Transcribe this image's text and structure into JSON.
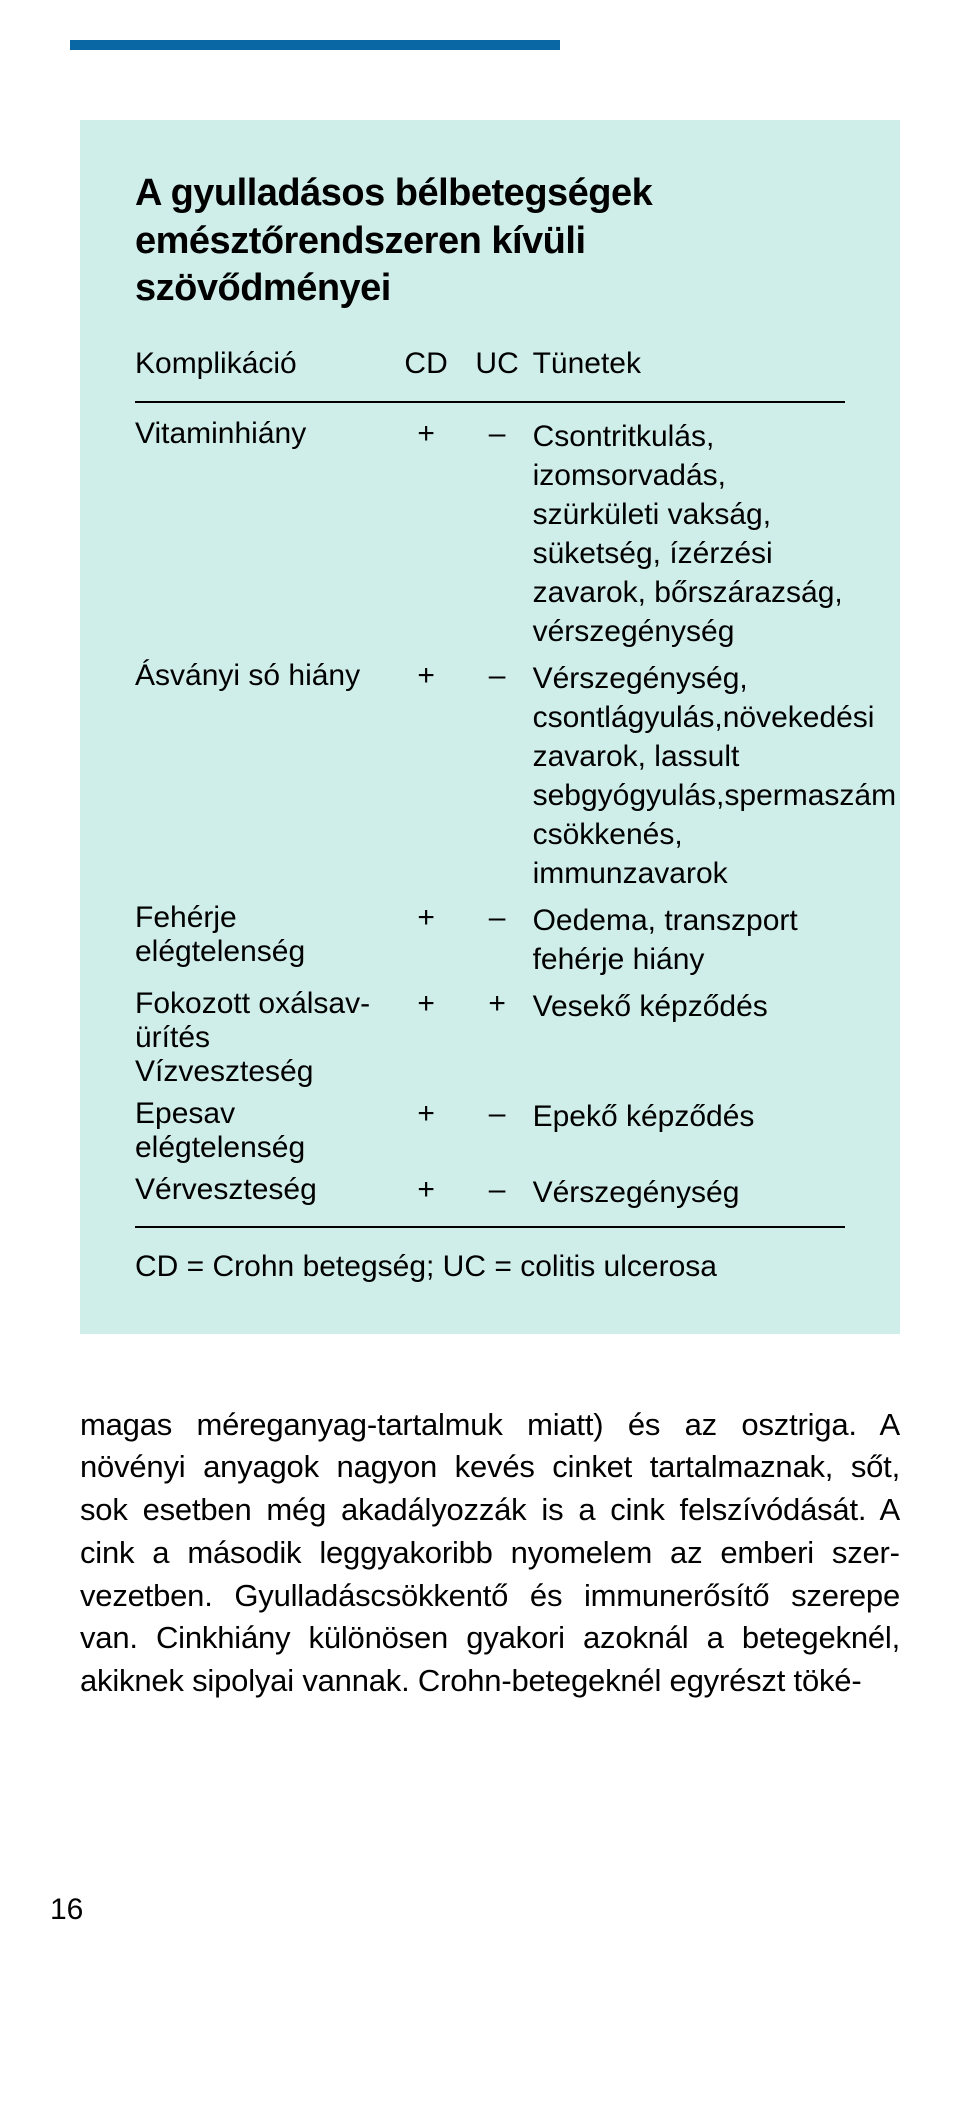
{
  "infobox": {
    "title_line1": "A gyulladásos bélbetegségek",
    "title_line2": "emésztőrendszeren kívüli szövődményei",
    "columns": {
      "label": "Komplikáció",
      "cd": "CD",
      "uc": "UC",
      "symptoms": "Tünetek"
    },
    "rows": [
      {
        "label": "Vitaminhiány",
        "cd": "+",
        "uc": "–",
        "symptoms": "Csontritkulás, izomsorvadás, szürkületi vakság, süketség, ízérzési zavarok, bőrszárazság, vérszegénység"
      },
      {
        "label": "Ásványi só hiány",
        "cd": "+",
        "uc": "–",
        "symptoms": "Vérszegénység, csontlágyulás,növekedési zavarok, lassult sebgyógyulás,spermaszám csökkenés, immunzavarok"
      },
      {
        "label": "Fehérje elégtelenség",
        "cd": "+",
        "uc": "–",
        "symptoms": "Oedema, transzport fehérje hiány"
      },
      {
        "label": "Fokozott oxálsav-ürítés Vízveszteség",
        "cd": "+",
        "uc": "+",
        "symptoms": "Vesekő képződés"
      },
      {
        "label": "Epesav elégtelenség",
        "cd": "+",
        "uc": "–",
        "symptoms": "Epekő képződés"
      },
      {
        "label": "Vérveszteség",
        "cd": "+",
        "uc": "–",
        "symptoms": "Vérszegénység"
      }
    ],
    "footnote": "CD = Crohn betegség; UC = colitis ulcerosa"
  },
  "bodytext": "magas méreganyag-tartalmuk miatt) és az osztriga. A növényi anyagok nagyon kevés cinket tartalmaznak, sőt, sok esetben még akadályozzák is a cink felszívódását. A cink a második leggyakoribb nyomelem az emberi szer­vezetben. Gyulladáscsökkentő és immunerősítő szerepe van. Cinkhiány különösen gyakori azoknál a betegeknél, akiknek sipolyai vannak. Crohn-betegeknél egyrészt töké-",
  "page_number": "16",
  "colors": {
    "top_rule": "#0968a3",
    "infobox_bg": "#cfede9",
    "text": "#000000",
    "page_bg": "#ffffff",
    "rule": "#000000"
  }
}
